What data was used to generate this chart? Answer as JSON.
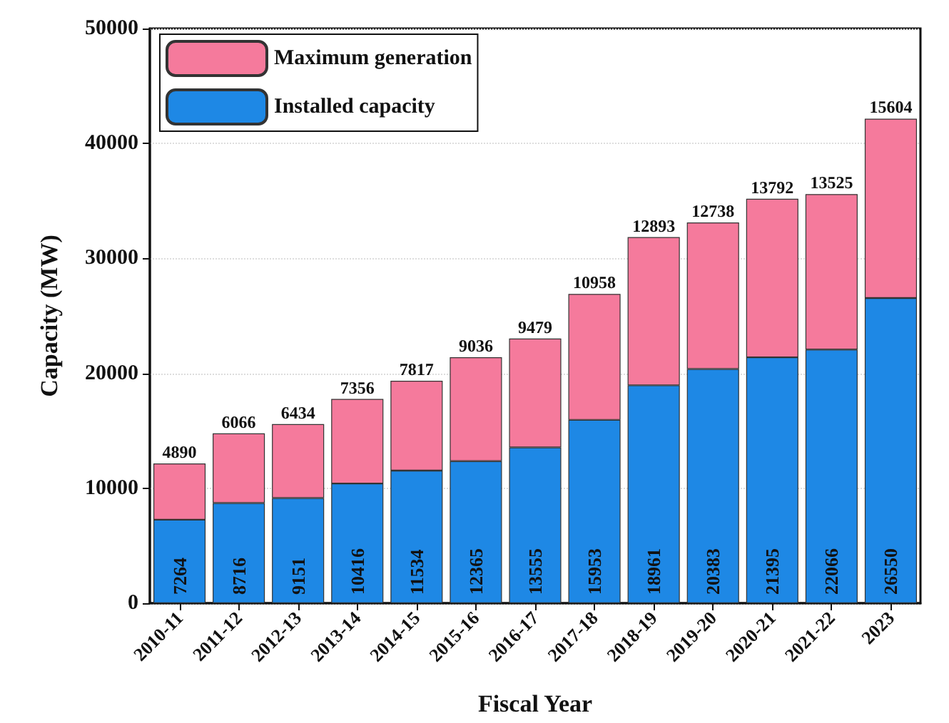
{
  "chart_data": {
    "type": "bar",
    "stacked": true,
    "xlabel": "Fiscal Year",
    "ylabel": "Capacity (MW)",
    "categories": [
      "2010-11",
      "2011-12",
      "2012-13",
      "2013-14",
      "2014-15",
      "2015-16",
      "2016-17",
      "2017-18",
      "2018-19",
      "2019-20",
      "2020-21",
      "2021-22",
      "2023"
    ],
    "series": [
      {
        "name": "Installed capacity",
        "color": "#1e88e5",
        "values": [
          7264,
          8716,
          9151,
          10416,
          11534,
          12365,
          13555,
          15953,
          18961,
          20383,
          21395,
          22066,
          26550
        ]
      },
      {
        "name": "Maximum generation",
        "color": "#f57a9c",
        "values": [
          4890,
          6066,
          6434,
          7356,
          7817,
          9036,
          9479,
          10958,
          12893,
          12738,
          13792,
          13525,
          15604
        ]
      }
    ],
    "ylim": [
      0,
      50000
    ],
    "yticks": [
      0,
      10000,
      20000,
      30000,
      40000,
      50000
    ],
    "grid": "y",
    "legend": "top left",
    "data_labels": true
  }
}
